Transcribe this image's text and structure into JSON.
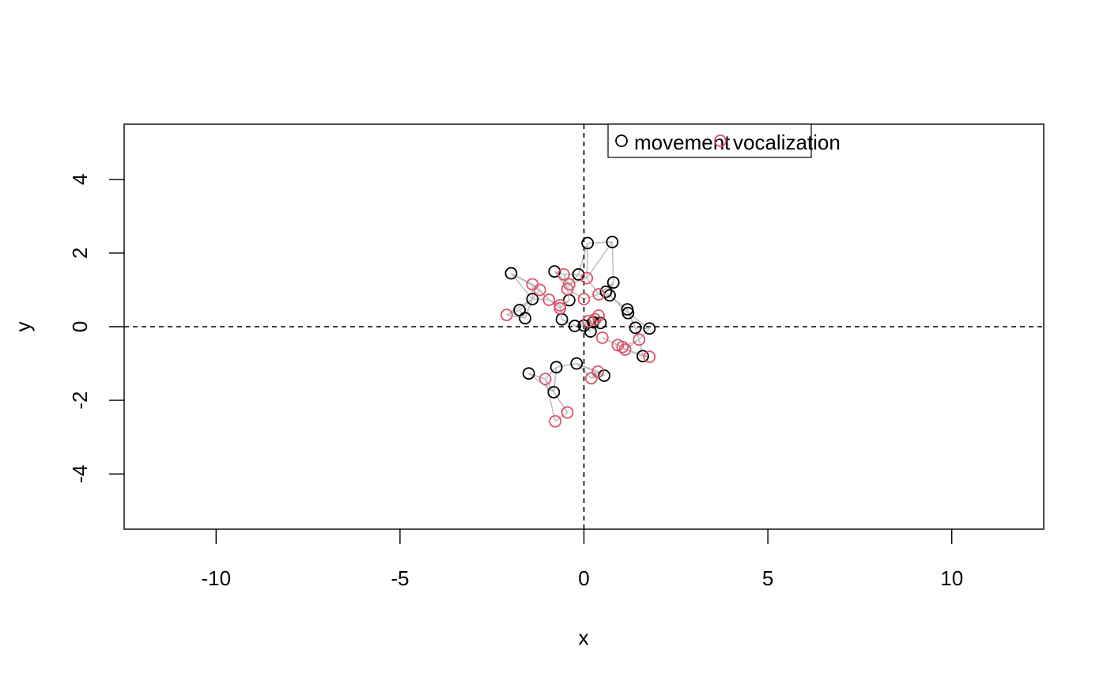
{
  "chart_data": {
    "type": "scatter",
    "title": "",
    "xlabel": "x",
    "ylabel": "y",
    "xlim": [
      -12.5,
      12.5
    ],
    "ylim": [
      -5.5,
      5.5
    ],
    "x_ticks": [
      -10,
      -5,
      0,
      5,
      10
    ],
    "y_ticks": [
      -4,
      -2,
      0,
      2,
      4
    ],
    "reference_lines": {
      "x": 0,
      "y": 0,
      "style": "dashed"
    },
    "grid": false,
    "legend_position": "top",
    "edge_color": "#bebebe",
    "legend": [
      {
        "label": "movement",
        "color": "#000000"
      },
      {
        "label": "vocalization",
        "color": "#df536b"
      }
    ],
    "series": [
      {
        "name": "movement",
        "color": "#000000",
        "points": [
          [
            0.1,
            2.27
          ],
          [
            0.77,
            2.3
          ],
          [
            -0.8,
            1.5
          ],
          [
            -0.15,
            1.42
          ],
          [
            -1.98,
            1.45
          ],
          [
            0.8,
            1.2
          ],
          [
            0.6,
            0.95
          ],
          [
            0.7,
            0.85
          ],
          [
            -1.4,
            0.75
          ],
          [
            -0.4,
            0.72
          ],
          [
            -1.75,
            0.45
          ],
          [
            -1.6,
            0.23
          ],
          [
            1.18,
            0.47
          ],
          [
            1.2,
            0.37
          ],
          [
            -0.6,
            0.2
          ],
          [
            0.45,
            0.1
          ],
          [
            0.25,
            0.12
          ],
          [
            -0.25,
            0.02
          ],
          [
            0.0,
            0.03
          ],
          [
            1.4,
            -0.03
          ],
          [
            1.78,
            -0.05
          ],
          [
            0.18,
            -0.13
          ],
          [
            1.6,
            -0.8
          ],
          [
            -0.2,
            -1.0
          ],
          [
            -0.75,
            -1.1
          ],
          [
            -1.5,
            -1.27
          ],
          [
            0.55,
            -1.33
          ],
          [
            -0.82,
            -1.78
          ]
        ]
      },
      {
        "name": "vocalization",
        "color": "#df536b",
        "points": [
          [
            -0.55,
            1.42
          ],
          [
            0.08,
            1.32
          ],
          [
            -1.4,
            1.15
          ],
          [
            -0.4,
            1.15
          ],
          [
            -1.2,
            1.0
          ],
          [
            -0.45,
            1.02
          ],
          [
            0.4,
            0.88
          ],
          [
            0.0,
            0.75
          ],
          [
            -0.95,
            0.73
          ],
          [
            -0.65,
            0.58
          ],
          [
            -0.65,
            0.5
          ],
          [
            -2.1,
            0.32
          ],
          [
            0.4,
            0.3
          ],
          [
            0.3,
            0.2
          ],
          [
            0.12,
            0.15
          ],
          [
            0.5,
            -0.3
          ],
          [
            1.5,
            -0.35
          ],
          [
            0.92,
            -0.5
          ],
          [
            1.05,
            -0.55
          ],
          [
            1.12,
            -0.62
          ],
          [
            1.78,
            -0.82
          ],
          [
            0.38,
            -1.22
          ],
          [
            0.2,
            -1.4
          ],
          [
            -1.05,
            -1.42
          ],
          [
            -0.45,
            -2.33
          ],
          [
            -0.78,
            -2.57
          ]
        ]
      }
    ]
  }
}
